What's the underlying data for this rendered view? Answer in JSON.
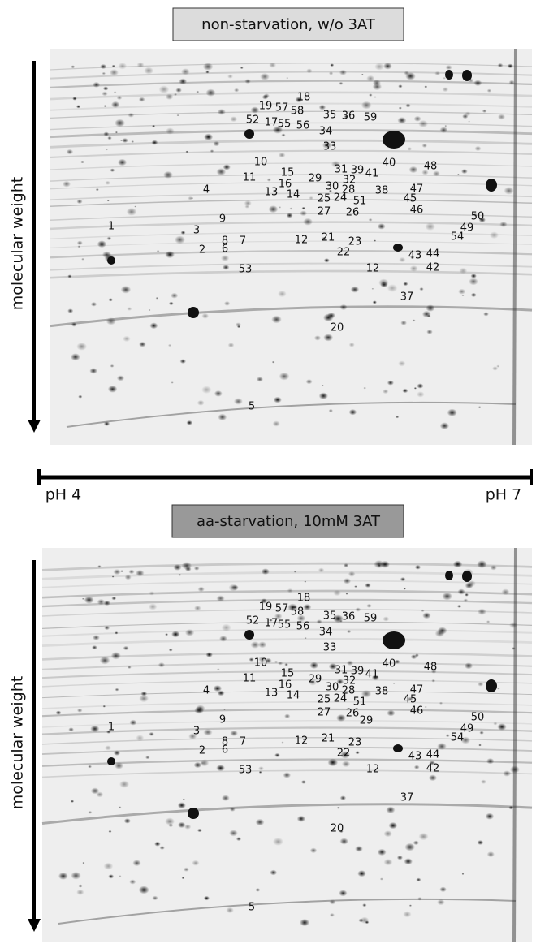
{
  "panels": [
    {
      "title": "non-starvation, w/o 3AT",
      "axis_label": "molecular weight",
      "spot_labels": [
        "18",
        "19",
        "57",
        "58",
        "35",
        "36",
        "59",
        "52",
        "17",
        "55",
        "56",
        "34",
        "33",
        "10",
        "40",
        "48",
        "31",
        "39",
        "41",
        "15",
        "11",
        "29",
        "32",
        "30",
        "28",
        "38",
        "47",
        "16",
        "4",
        "13",
        "14",
        "25",
        "24",
        "51",
        "45",
        "27",
        "26",
        "46",
        "50",
        "9",
        "1",
        "49",
        "3",
        "54",
        "8",
        "7",
        "12",
        "21",
        "23",
        "2",
        "6",
        "22",
        "44",
        "43",
        "12",
        "42",
        "53",
        "37",
        "20",
        "5"
      ]
    },
    {
      "title": "aa-starvation, 10mM 3AT",
      "axis_label": "molecular weight",
      "spot_labels": [
        "18",
        "19",
        "57",
        "58",
        "35",
        "36",
        "59",
        "52",
        "17",
        "55",
        "56",
        "34",
        "33",
        "10",
        "40",
        "48",
        "31",
        "39",
        "41",
        "15",
        "11",
        "29",
        "32",
        "30",
        "28",
        "38",
        "47",
        "16",
        "4",
        "13",
        "14",
        "25",
        "24",
        "51",
        "45",
        "27",
        "26",
        "46",
        "50",
        "9",
        "1",
        "49",
        "3",
        "54",
        "8",
        "7",
        "12",
        "21",
        "23",
        "2",
        "6",
        "22",
        "44",
        "43",
        "12",
        "42",
        "53",
        "37",
        "20",
        "5",
        "29"
      ]
    }
  ],
  "ph_axis": {
    "left": "pH 4",
    "right": "pH 7"
  }
}
